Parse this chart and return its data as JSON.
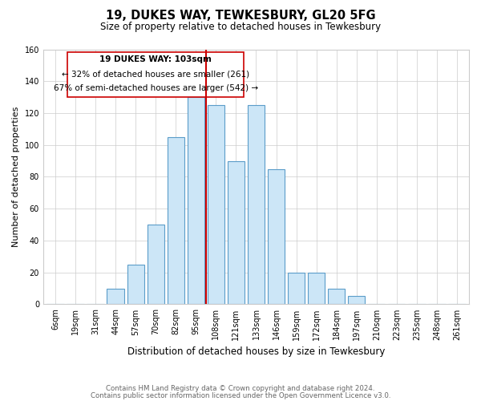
{
  "title": "19, DUKES WAY, TEWKESBURY, GL20 5FG",
  "subtitle": "Size of property relative to detached houses in Tewkesbury",
  "xlabel": "Distribution of detached houses by size in Tewkesbury",
  "ylabel": "Number of detached properties",
  "annotation_line1": "19 DUKES WAY: 103sqm",
  "annotation_line2": "← 32% of detached houses are smaller (261)",
  "annotation_line3": "67% of semi-detached houses are larger (542) →",
  "bins": [
    "6sqm",
    "19sqm",
    "31sqm",
    "44sqm",
    "57sqm",
    "70sqm",
    "82sqm",
    "95sqm",
    "108sqm",
    "121sqm",
    "133sqm",
    "146sqm",
    "159sqm",
    "172sqm",
    "184sqm",
    "197sqm",
    "210sqm",
    "223sqm",
    "235sqm",
    "248sqm",
    "261sqm"
  ],
  "values": [
    0,
    0,
    0,
    10,
    25,
    50,
    105,
    130,
    125,
    90,
    125,
    85,
    20,
    20,
    10,
    5,
    0,
    0,
    0,
    0,
    0
  ],
  "bar_color": "#cce6f7",
  "bar_edge_color": "#5b9dc9",
  "vline_color": "#cc0000",
  "vline_x": 7.5,
  "ylim": [
    0,
    160
  ],
  "yticks": [
    0,
    20,
    40,
    60,
    80,
    100,
    120,
    140,
    160
  ],
  "footnote1": "Contains HM Land Registry data © Crown copyright and database right 2024.",
  "footnote2": "Contains public sector information licensed under the Open Government Licence v3.0."
}
